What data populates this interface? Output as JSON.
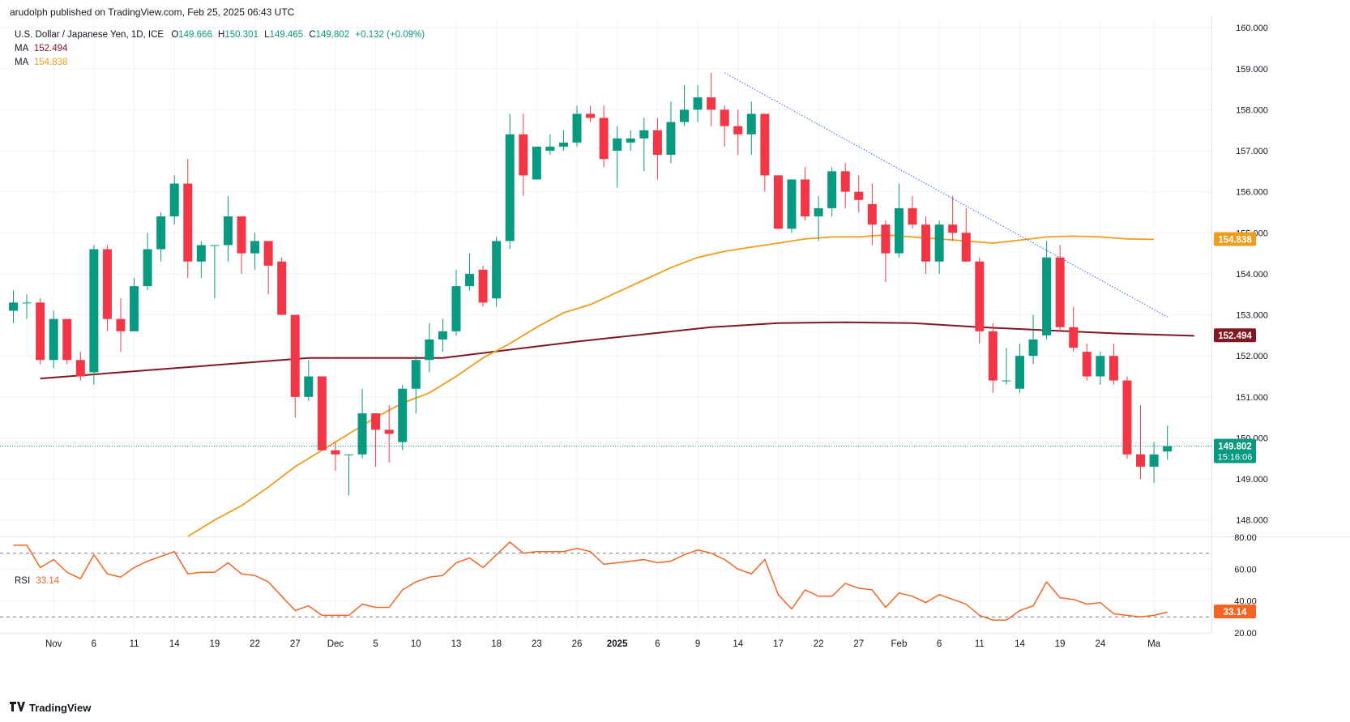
{
  "header": {
    "publisher_line": "arudolph published on TradingView.com, Feb 25, 2025 06:43 UTC"
  },
  "legend": {
    "symbol": "U.S. Dollar / Japanese Yen, 1D, ICE",
    "o_label": "O",
    "o": "149.666",
    "h_label": "H",
    "h": "150.301",
    "l_label": "L",
    "l": "149.465",
    "c_label": "C",
    "c": "149.802",
    "change": "+0.132 (+0.09%)",
    "ma1_label": "MA",
    "ma1_value": "152.494",
    "ma2_label": "MA",
    "ma2_value": "154.838"
  },
  "rsi_legend": {
    "label": "RSI",
    "value": "33.14"
  },
  "footer": {
    "brand": "TradingView"
  },
  "colors": {
    "up": "#089981",
    "down": "#f23645",
    "ma_slow": "#801922",
    "ma_fast": "#f09c1c",
    "rsi": "#f26522",
    "trend": "#2962ff",
    "grid": "#f0f3fa"
  },
  "chart_data": {
    "type": "candlestick",
    "title": "U.S. Dollar / Japanese Yen, 1D, ICE",
    "price_axis": {
      "ylim": [
        147.6,
        160.2
      ],
      "ticks": [
        "148.000",
        "149.000",
        "150.000",
        "151.000",
        "152.000",
        "153.000",
        "154.000",
        "155.000",
        "156.000",
        "157.000",
        "158.000",
        "159.000",
        "160.000"
      ]
    },
    "price_labels": [
      {
        "value": 154.838,
        "text": "154.838",
        "color": "#f09c1c",
        "subtext": ""
      },
      {
        "value": 152.494,
        "text": "152.494",
        "color": "#801922",
        "subtext": ""
      },
      {
        "value": 149.802,
        "text": "149.802",
        "color": "#089981",
        "subtext": "15:16:06"
      }
    ],
    "x_ticks": [
      {
        "index": 1,
        "label": "Nov"
      },
      {
        "index": 4,
        "label": "6"
      },
      {
        "index": 7,
        "label": "11"
      },
      {
        "index": 10,
        "label": "14"
      },
      {
        "index": 13,
        "label": "19"
      },
      {
        "index": 16,
        "label": "22"
      },
      {
        "index": 19,
        "label": "27"
      },
      {
        "index": 22,
        "label": "Dec"
      },
      {
        "index": 25,
        "label": "5"
      },
      {
        "index": 28,
        "label": "10"
      },
      {
        "index": 31,
        "label": "13"
      },
      {
        "index": 34,
        "label": "18"
      },
      {
        "index": 37,
        "label": "23"
      },
      {
        "index": 40,
        "label": "26"
      },
      {
        "index": 43,
        "label": "2025"
      },
      {
        "index": 46,
        "label": "6"
      },
      {
        "index": 49,
        "label": "9"
      },
      {
        "index": 52,
        "label": "14"
      },
      {
        "index": 55,
        "label": "17"
      },
      {
        "index": 58,
        "label": "22"
      },
      {
        "index": 61,
        "label": "27"
      },
      {
        "index": 64,
        "label": "Feb"
      },
      {
        "index": 67,
        "label": "6"
      },
      {
        "index": 70,
        "label": "11"
      },
      {
        "index": 73,
        "label": "14"
      },
      {
        "index": 76,
        "label": "19"
      },
      {
        "index": 79,
        "label": "24"
      },
      {
        "index": 83,
        "label": "Ma"
      }
    ],
    "ohlc": [
      [
        153.1,
        153.6,
        152.8,
        153.3
      ],
      [
        153.3,
        153.5,
        152.9,
        153.3
      ],
      [
        153.3,
        153.4,
        151.8,
        151.9
      ],
      [
        151.9,
        153.1,
        151.7,
        152.9
      ],
      [
        152.9,
        152.9,
        151.8,
        151.9
      ],
      [
        151.9,
        152.1,
        151.4,
        151.5
      ],
      [
        151.6,
        154.7,
        151.3,
        154.6
      ],
      [
        154.6,
        154.7,
        152.6,
        152.9
      ],
      [
        152.9,
        153.4,
        152.1,
        152.6
      ],
      [
        152.6,
        153.9,
        152.6,
        153.7
      ],
      [
        153.7,
        155.0,
        153.6,
        154.6
      ],
      [
        154.6,
        155.5,
        154.3,
        155.4
      ],
      [
        155.4,
        156.4,
        155.2,
        156.2
      ],
      [
        156.2,
        156.8,
        153.9,
        154.3
      ],
      [
        154.3,
        154.8,
        153.9,
        154.7
      ],
      [
        154.7,
        154.7,
        153.4,
        154.7
      ],
      [
        154.7,
        155.9,
        154.3,
        155.4
      ],
      [
        155.4,
        155.4,
        154.0,
        154.5
      ],
      [
        154.5,
        155.0,
        154.1,
        154.8
      ],
      [
        154.8,
        154.8,
        153.5,
        154.2
      ],
      [
        154.3,
        154.4,
        153.0,
        153.0
      ],
      [
        153.0,
        153.0,
        150.5,
        151.0
      ],
      [
        151.0,
        151.9,
        150.9,
        151.5
      ],
      [
        151.5,
        151.5,
        149.7,
        149.7
      ],
      [
        149.7,
        149.9,
        149.2,
        149.6
      ],
      [
        149.6,
        149.6,
        148.6,
        149.6
      ],
      [
        149.6,
        151.2,
        149.5,
        150.6
      ],
      [
        150.6,
        150.6,
        149.3,
        150.2
      ],
      [
        150.2,
        150.8,
        149.4,
        150.1
      ],
      [
        149.9,
        151.3,
        149.7,
        151.2
      ],
      [
        151.2,
        152.0,
        150.6,
        151.9
      ],
      [
        151.9,
        152.8,
        151.6,
        152.4
      ],
      [
        152.4,
        152.9,
        152.1,
        152.6
      ],
      [
        152.6,
        154.1,
        152.5,
        153.7
      ],
      [
        153.7,
        154.5,
        153.6,
        154.0
      ],
      [
        154.1,
        154.2,
        153.2,
        153.3
      ],
      [
        153.4,
        154.9,
        153.2,
        154.8
      ],
      [
        154.8,
        157.9,
        154.6,
        157.4
      ],
      [
        157.4,
        157.9,
        155.9,
        156.4
      ],
      [
        156.3,
        157.1,
        156.3,
        157.1
      ],
      [
        157.0,
        157.4,
        156.9,
        157.1
      ],
      [
        157.1,
        157.5,
        157.0,
        157.2
      ],
      [
        157.2,
        158.1,
        157.1,
        157.9
      ],
      [
        157.9,
        158.1,
        157.7,
        157.8
      ],
      [
        157.8,
        158.1,
        156.6,
        156.8
      ],
      [
        157.0,
        157.6,
        156.1,
        157.3
      ],
      [
        157.2,
        157.5,
        157.0,
        157.3
      ],
      [
        157.3,
        157.8,
        156.5,
        157.5
      ],
      [
        157.5,
        157.8,
        156.3,
        156.9
      ],
      [
        156.9,
        158.2,
        156.7,
        157.7
      ],
      [
        157.7,
        158.6,
        157.6,
        158.0
      ],
      [
        158.0,
        158.6,
        157.7,
        158.3
      ],
      [
        158.3,
        158.9,
        157.6,
        158.0
      ],
      [
        158.0,
        158.1,
        157.1,
        157.6
      ],
      [
        157.6,
        158.0,
        156.9,
        157.4
      ],
      [
        157.4,
        158.2,
        156.9,
        157.9
      ],
      [
        157.9,
        157.9,
        156.0,
        156.4
      ],
      [
        156.4,
        156.4,
        155.1,
        155.1
      ],
      [
        155.1,
        156.3,
        155.0,
        156.3
      ],
      [
        156.3,
        156.6,
        155.3,
        155.4
      ],
      [
        155.4,
        155.9,
        154.8,
        155.6
      ],
      [
        155.6,
        156.6,
        155.4,
        156.5
      ],
      [
        156.5,
        156.7,
        155.6,
        156.0
      ],
      [
        156.0,
        156.4,
        155.5,
        155.8
      ],
      [
        155.7,
        156.2,
        154.7,
        155.2
      ],
      [
        155.2,
        155.3,
        153.8,
        154.5
      ],
      [
        154.5,
        156.2,
        154.4,
        155.6
      ],
      [
        155.6,
        155.9,
        155.1,
        155.2
      ],
      [
        155.2,
        155.4,
        154.0,
        154.3
      ],
      [
        154.3,
        155.3,
        154.0,
        155.2
      ],
      [
        155.2,
        155.9,
        154.8,
        155.0
      ],
      [
        155.0,
        155.6,
        154.3,
        154.3
      ],
      [
        154.3,
        154.4,
        152.3,
        152.6
      ],
      [
        152.6,
        152.8,
        151.1,
        151.4
      ],
      [
        151.4,
        152.2,
        151.3,
        151.4
      ],
      [
        151.2,
        152.3,
        151.1,
        152.0
      ],
      [
        152.0,
        153.0,
        151.8,
        152.4
      ],
      [
        152.5,
        154.8,
        152.4,
        154.4
      ],
      [
        154.4,
        154.7,
        152.6,
        152.7
      ],
      [
        152.7,
        153.2,
        152.1,
        152.2
      ],
      [
        152.1,
        152.3,
        151.4,
        151.5
      ],
      [
        151.5,
        152.1,
        151.3,
        152.0
      ],
      [
        152.0,
        152.3,
        151.3,
        151.4
      ],
      [
        151.4,
        151.5,
        149.5,
        149.6
      ],
      [
        149.6,
        150.8,
        149.0,
        149.3
      ],
      [
        149.3,
        149.9,
        148.9,
        149.6
      ],
      [
        149.67,
        150.3,
        149.47,
        149.8
      ]
    ],
    "ma_slow": {
      "name": "MA",
      "value": 152.494,
      "points": [
        [
          0,
          151.45
        ],
        [
          10,
          151.7
        ],
        [
          20,
          151.95
        ],
        [
          30,
          151.95
        ],
        [
          40,
          152.35
        ],
        [
          50,
          152.7
        ],
        [
          55,
          152.8
        ],
        [
          60,
          152.82
        ],
        [
          65,
          152.8
        ],
        [
          70,
          152.7
        ],
        [
          80,
          152.55
        ],
        [
          86,
          152.49
        ]
      ]
    },
    "ma_fast": {
      "name": "MA",
      "value": 154.838,
      "points": [
        [
          11,
          147.6
        ],
        [
          13,
          148.0
        ],
        [
          15,
          148.35
        ],
        [
          17,
          148.8
        ],
        [
          19,
          149.3
        ],
        [
          21,
          149.7
        ],
        [
          23,
          150.1
        ],
        [
          25,
          150.5
        ],
        [
          27,
          150.85
        ],
        [
          29,
          151.1
        ],
        [
          31,
          151.5
        ],
        [
          33,
          151.95
        ],
        [
          35,
          152.3
        ],
        [
          37,
          152.7
        ],
        [
          39,
          153.05
        ],
        [
          41,
          153.25
        ],
        [
          43,
          153.55
        ],
        [
          45,
          153.85
        ],
        [
          47,
          154.15
        ],
        [
          49,
          154.4
        ],
        [
          51,
          154.55
        ],
        [
          53,
          154.65
        ],
        [
          55,
          154.75
        ],
        [
          57,
          154.85
        ],
        [
          59,
          154.9
        ],
        [
          61,
          154.9
        ],
        [
          63,
          154.95
        ],
        [
          65,
          154.9
        ],
        [
          67,
          154.85
        ],
        [
          69,
          154.8
        ],
        [
          71,
          154.75
        ],
        [
          73,
          154.82
        ],
        [
          75,
          154.9
        ],
        [
          77,
          154.92
        ],
        [
          79,
          154.9
        ],
        [
          81,
          154.85
        ],
        [
          83,
          154.84
        ]
      ]
    },
    "trendline": {
      "from": [
        51,
        158.9
      ],
      "to": [
        84,
        152.95
      ]
    },
    "rsi": {
      "name": "RSI",
      "value": 33.14,
      "ylim": [
        20,
        80
      ],
      "levels": [
        70,
        30
      ],
      "ticks": [
        "20.00",
        "40.00",
        "60.00",
        "80.00"
      ],
      "values": [
        75,
        75,
        61,
        66,
        58,
        54,
        69,
        57,
        55,
        61,
        65,
        68,
        71,
        57,
        58,
        58,
        64,
        57,
        56,
        52,
        43,
        34,
        37,
        31,
        31,
        31,
        38,
        36,
        36,
        47,
        52,
        55,
        56,
        64,
        67,
        61,
        69,
        77,
        70,
        71,
        71,
        71,
        73,
        71,
        63,
        64,
        65,
        66,
        64,
        65,
        69,
        72,
        70,
        66,
        60,
        57,
        66,
        44,
        35,
        47,
        43,
        43,
        51,
        48,
        47,
        36,
        45,
        43,
        39,
        44,
        41,
        38,
        31,
        28,
        28,
        34,
        37,
        52,
        42,
        41,
        38,
        39,
        32,
        31,
        30,
        31,
        33
      ]
    }
  }
}
